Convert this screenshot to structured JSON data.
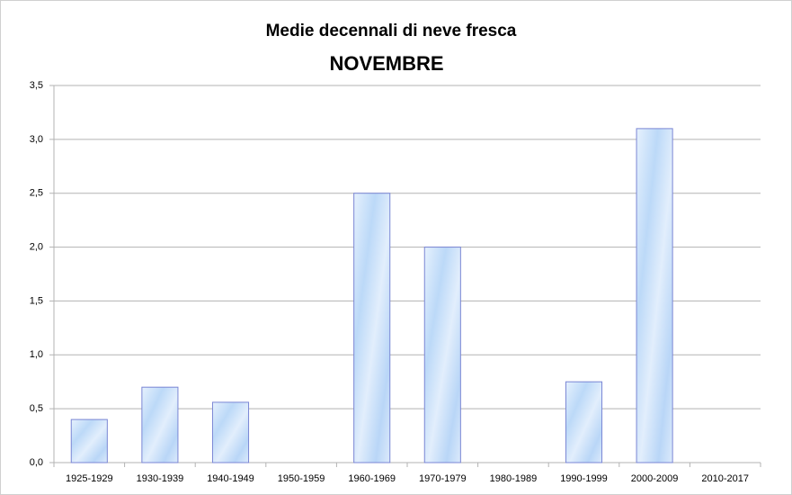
{
  "chart_data": {
    "type": "bar",
    "title": "Medie decennali di neve fresca",
    "subtitle": "NOVEMBRE",
    "categories": [
      "1925-1929",
      "1930-1939",
      "1940-1949",
      "1950-1959",
      "1960-1969",
      "1970-1979",
      "1980-1989",
      "1990-1999",
      "2000-2009",
      "2010-2017"
    ],
    "values": [
      0.4,
      0.7,
      0.56,
      0,
      2.5,
      2.0,
      0,
      0.75,
      3.1,
      0
    ],
    "color": "#c4defa",
    "ylim": [
      0,
      3.5
    ],
    "yticks": [
      {
        "value": 0,
        "label": "0,0"
      },
      {
        "value": 0.5,
        "label": "0,5"
      },
      {
        "value": 1,
        "label": "1,0"
      },
      {
        "value": 1.5,
        "label": "1,5"
      },
      {
        "value": 2,
        "label": "2,0"
      },
      {
        "value": 2.5,
        "label": "2,5"
      },
      {
        "value": 3,
        "label": "3,0"
      },
      {
        "value": 3.5,
        "label": "3,5"
      }
    ],
    "grid": true
  }
}
